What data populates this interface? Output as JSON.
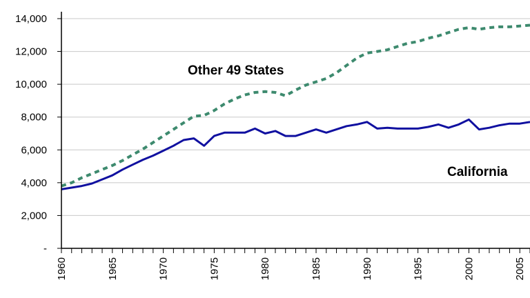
{
  "chart_data": {
    "type": "line",
    "title": "",
    "xlabel": "",
    "ylabel": "",
    "xlim": [
      1960,
      2006
    ],
    "ylim": [
      0,
      14000
    ],
    "y_ticks": [
      {
        "value": 0,
        "label": "-"
      },
      {
        "value": 2000,
        "label": "2,000"
      },
      {
        "value": 4000,
        "label": "4,000"
      },
      {
        "value": 6000,
        "label": "6,000"
      },
      {
        "value": 8000,
        "label": "8,000"
      },
      {
        "value": 10000,
        "label": "10,000"
      },
      {
        "value": 12000,
        "label": "12,000"
      },
      {
        "value": 14000,
        "label": "14,000"
      }
    ],
    "x_ticks": [
      "1960",
      "1965",
      "1970",
      "1975",
      "1980",
      "1985",
      "1990",
      "1995",
      "2000",
      "2005"
    ],
    "grid": "horizontal",
    "legend": "none",
    "series": [
      {
        "name": "Other 49 States",
        "color": "#3d8a6e",
        "style": "dashed",
        "x": [
          1960,
          1961,
          1962,
          1963,
          1964,
          1965,
          1966,
          1967,
          1968,
          1969,
          1970,
          1971,
          1972,
          1973,
          1974,
          1975,
          1976,
          1977,
          1978,
          1979,
          1980,
          1981,
          1982,
          1983,
          1984,
          1985,
          1986,
          1987,
          1988,
          1989,
          1990,
          1991,
          1992,
          1993,
          1994,
          1995,
          1996,
          1997,
          1998,
          1999,
          2000,
          2001,
          2002,
          2003,
          2004,
          2005,
          2006
        ],
        "values": [
          3800,
          4000,
          4300,
          4550,
          4800,
          5050,
          5350,
          5700,
          6050,
          6450,
          6850,
          7250,
          7650,
          8050,
          8100,
          8400,
          8800,
          9100,
          9350,
          9500,
          9550,
          9500,
          9300,
          9650,
          9950,
          10150,
          10350,
          10700,
          11150,
          11600,
          11900,
          12000,
          12100,
          12300,
          12500,
          12600,
          12800,
          12950,
          13150,
          13350,
          13450,
          13350,
          13450,
          13500,
          13500,
          13550,
          13600
        ]
      },
      {
        "name": "California",
        "color": "#1010a0",
        "style": "solid",
        "x": [
          1960,
          1961,
          1962,
          1963,
          1964,
          1965,
          1966,
          1967,
          1968,
          1969,
          1970,
          1971,
          1972,
          1973,
          1974,
          1975,
          1976,
          1977,
          1978,
          1979,
          1980,
          1981,
          1982,
          1983,
          1984,
          1985,
          1986,
          1987,
          1988,
          1989,
          1990,
          1991,
          1992,
          1993,
          1994,
          1995,
          1996,
          1997,
          1998,
          1999,
          2000,
          2001,
          2002,
          2003,
          2004,
          2005,
          2006
        ],
        "values": [
          3600,
          3700,
          3800,
          3950,
          4200,
          4450,
          4800,
          5100,
          5400,
          5650,
          5950,
          6250,
          6600,
          6700,
          6250,
          6850,
          7050,
          7050,
          7050,
          7300,
          7000,
          7150,
          6850,
          6850,
          7050,
          7250,
          7050,
          7250,
          7450,
          7550,
          7700,
          7300,
          7350,
          7300,
          7300,
          7300,
          7400,
          7550,
          7350,
          7550,
          7850,
          7250,
          7350,
          7500,
          7600,
          7600,
          7700
        ]
      }
    ]
  }
}
